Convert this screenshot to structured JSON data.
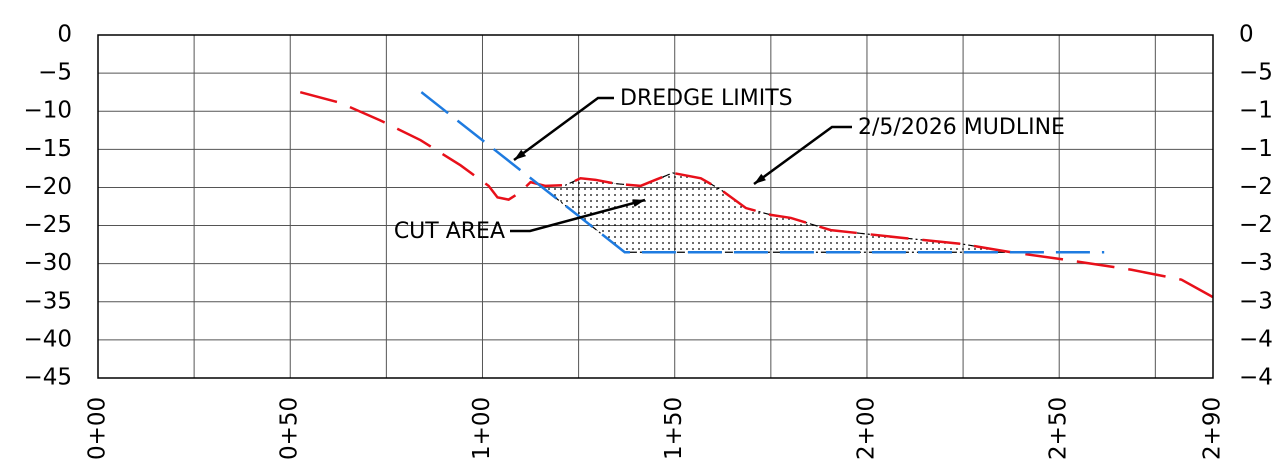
{
  "chart_data": {
    "type": "line",
    "xlim": [
      0,
      290
    ],
    "ylim": [
      -45,
      0
    ],
    "xticks": [
      {
        "value": 0,
        "label": "0+00"
      },
      {
        "value": 50,
        "label": "0+50"
      },
      {
        "value": 100,
        "label": "1+00"
      },
      {
        "value": 150,
        "label": "1+50"
      },
      {
        "value": 200,
        "label": "2+00"
      },
      {
        "value": 250,
        "label": "2+50"
      },
      {
        "value": 290,
        "label": "2+90"
      }
    ],
    "xminor": [
      25,
      75,
      125,
      175,
      225,
      275
    ],
    "yticks": [
      0,
      {
        "value": -5,
        "label": "−5"
      },
      {
        "value": -10,
        "label": "−10"
      },
      {
        "value": -15,
        "label": "−15"
      },
      {
        "value": -20,
        "label": "−20"
      },
      {
        "value": -25,
        "label": "−25"
      },
      {
        "value": -30,
        "label": "−30"
      },
      {
        "value": -35,
        "label": "−35"
      },
      {
        "value": -40,
        "label": "−40"
      },
      {
        "value": -45,
        "label": "−45"
      }
    ],
    "yticks_right": true,
    "grid": true,
    "series": [
      {
        "name": "2/5/2026 MUDLINE",
        "color": "#e8101a",
        "x": [
          52.6,
          63,
          73.4,
          83.9,
          94.3,
          101.6,
          103.9,
          106.8,
          109.9,
          112.5,
          116.4,
          121.6,
          125.5,
          129.4,
          134.6,
          141.1,
          145,
          149.5,
          156.8,
          162,
          168.5,
          175,
          180.2,
          190.6,
          208.9,
          224.5,
          237.5,
          250.5,
          268.8,
          281.8,
          290.4
        ],
        "values": [
          -7.5,
          -8.9,
          -11.2,
          -13.8,
          -17.1,
          -19.8,
          -21.3,
          -21.6,
          -20.6,
          -19.3,
          -19.8,
          -19.7,
          -18.8,
          -19.0,
          -19.5,
          -19.8,
          -19.0,
          -18.1,
          -18.8,
          -20.3,
          -22.7,
          -23.6,
          -24.0,
          -25.6,
          -26.6,
          -27.4,
          -28.5,
          -29.4,
          -30.8,
          -32.1,
          -34.5
        ]
      },
      {
        "name": "DREDGE LIMITS",
        "color": "#1e7be0",
        "x": [
          84.1,
          137,
          261.7
        ],
        "values": [
          -7.5,
          -28.5,
          -28.5
        ]
      }
    ],
    "annotations": [
      "CUT AREA"
    ]
  }
}
